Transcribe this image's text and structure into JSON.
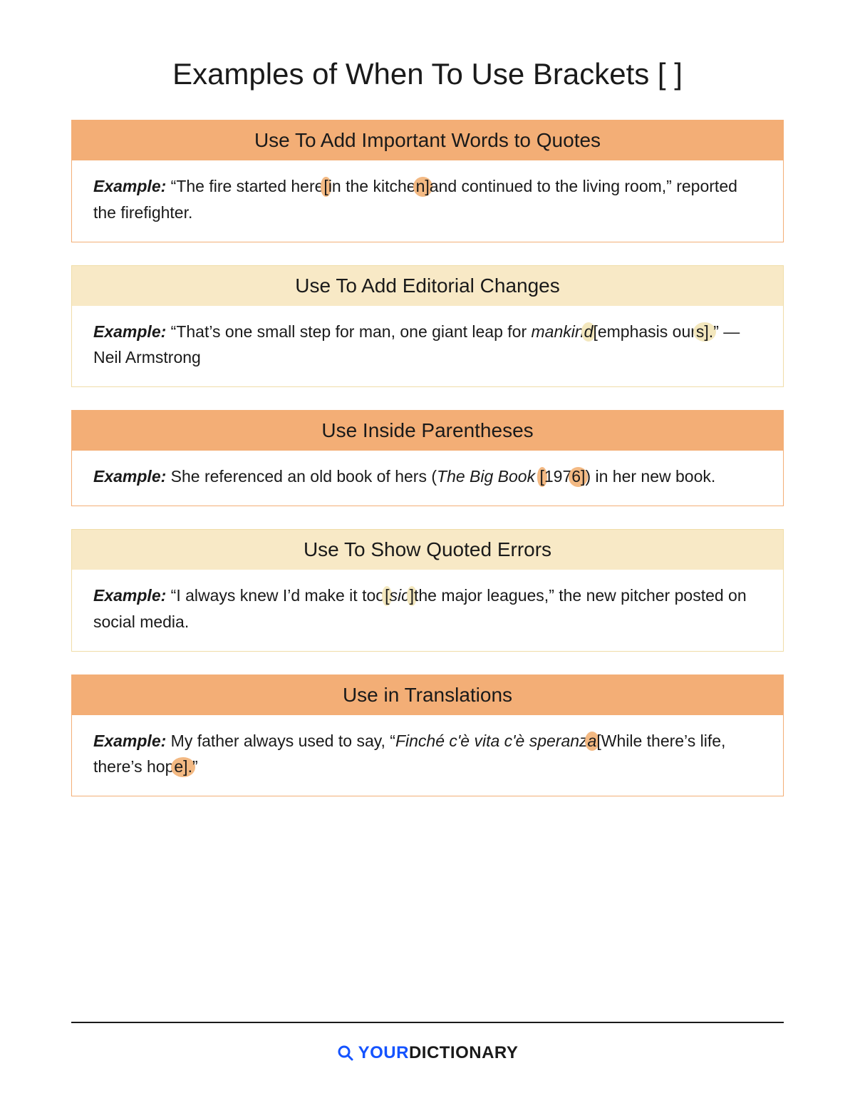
{
  "title": "Examples of When To Use Brackets [ ]",
  "colors": {
    "header_orange": "#f3ae76",
    "header_cream": "#f8e9c6",
    "border_orange": "#f3ae76",
    "border_cream": "#f0dda8",
    "hl_orange": "#f3b983",
    "hl_cream": "#f3e7bd",
    "logo_blue": "#1453ff",
    "text": "#1a1a1a"
  },
  "sections": [
    {
      "header": "Use To Add Important Words to Quotes",
      "style": "orange",
      "example_label": "Example:",
      "segments": [
        {
          "t": " “The fire started here"
        },
        {
          "t": " [",
          "hl": true
        },
        {
          "t": "in the kitche"
        },
        {
          "t": "n] ",
          "hl": true
        },
        {
          "t": "and continued to the living room,” reported the firefighter."
        }
      ]
    },
    {
      "header": "Use To Add Editorial Changes",
      "style": "cream",
      "example_label": "Example:",
      "segments": [
        {
          "t": " “That’s one small step for man, one giant leap for "
        },
        {
          "t": "mankin",
          "italic": true
        },
        {
          "t": "d ",
          "italic": true,
          "hl": true
        },
        {
          "t": "[emphasis our"
        },
        {
          "t": "s].",
          "hl": true
        },
        {
          "t": "” —Neil Armstrong"
        }
      ]
    },
    {
      "header": "Use Inside Parentheses",
      "style": "orange",
      "example_label": "Example:",
      "segments": [
        {
          "t": " She referenced an old book of hers ("
        },
        {
          "t": "The Big Book",
          "italic": true
        },
        {
          "t": " "
        },
        {
          "t": "[",
          "hl": true
        },
        {
          "t": "197"
        },
        {
          "t": "6]",
          "hl": true
        },
        {
          "t": ") in her new book."
        }
      ]
    },
    {
      "header": "Use To Show Quoted Errors",
      "style": "cream",
      "example_label": "Example:",
      "segments": [
        {
          "t": " “I always knew I’d make it too"
        },
        {
          "t": " [",
          "hl": true
        },
        {
          "t": "sic",
          "italic": true
        },
        {
          "t": "] ",
          "hl": true
        },
        {
          "t": "the major leagues,” the new pitcher posted on social media."
        }
      ]
    },
    {
      "header": "Use in Translations",
      "style": "orange",
      "example_label": "Example:",
      "segments": [
        {
          "t": " My father always used to say, “"
        },
        {
          "t": "Finché c'è vita c'è speranz",
          "italic": true
        },
        {
          "t": "a ",
          "italic": true,
          "hl": true
        },
        {
          "t": "[While there’s life, there’s hop"
        },
        {
          "t": "e].",
          "hl": true
        },
        {
          "t": "”"
        }
      ]
    }
  ],
  "logo": {
    "your": "YOUR",
    "dict": "DICTIONARY"
  }
}
